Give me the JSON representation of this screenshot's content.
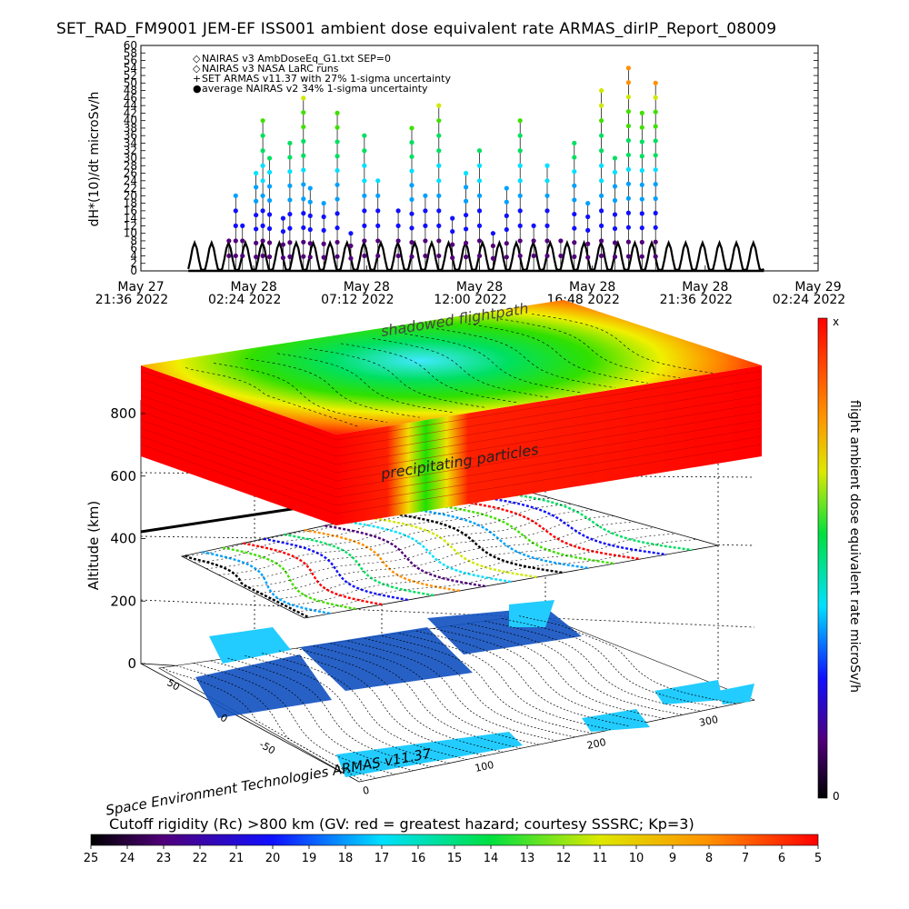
{
  "title": "SET_RAD_FM9001  JEM-EF ISS001 ambient dose equivalent rate ARMAS_dirIP_Report_08009",
  "footer_label": "Space Environment Technologies ARMAS v11.37",
  "cutoff_title": "Cutoff rigidity (Rc) >800 km (GV: red = greatest hazard; courtesy SSSRC; Kp=3)",
  "annotations": {
    "shadowed": "shadowed flightpath",
    "precipitating": "precipitating particles"
  },
  "colorbar": {
    "label": "flight ambient dose equivalent rate microSv/h",
    "top_label": "x",
    "bottom_label": "0"
  },
  "cutoff_bar": {
    "ticks": [
      "25",
      "24",
      "23",
      "22",
      "21",
      "20",
      "19",
      "18",
      "17",
      "16",
      "15",
      "14",
      "13",
      "12",
      "11",
      "10",
      "9",
      "8",
      "7",
      "6",
      "5"
    ]
  },
  "chart_data": [
    {
      "type": "line",
      "title": "",
      "ylabel": "dH*(10)/dt microSv/h",
      "xlabel": "",
      "ylim": [
        0,
        60
      ],
      "yticks": [
        0,
        2,
        4,
        6,
        8,
        10,
        12,
        14,
        16,
        18,
        20,
        22,
        24,
        26,
        28,
        30,
        32,
        34,
        36,
        38,
        40,
        42,
        44,
        46,
        48,
        50,
        52,
        54,
        56,
        58,
        60
      ],
      "xticks": [
        [
          "May 27",
          "21:36 2022"
        ],
        [
          "May 28",
          "02:24 2022"
        ],
        [
          "May 28",
          "07:12 2022"
        ],
        [
          "May 28",
          "12:00 2022"
        ],
        [
          "May 28",
          "16:48 2022"
        ],
        [
          "May 28",
          "21:36 2022"
        ],
        [
          "May 29",
          "02:24 2022"
        ]
      ],
      "legend": [
        {
          "symbol": "◇",
          "text": "NAIRAS v3 AmbDoseEq_G1.txt SEP=0"
        },
        {
          "symbol": "◇",
          "text": "NAIRAS v3 NASA LaRC runs"
        },
        {
          "symbol": "+",
          "text": "SET ARMAS v11.37 with 27% 1-sigma uncertainty"
        },
        {
          "symbol": "●",
          "text": "average NAIRAS v2 34% 1-sigma uncertainty"
        }
      ],
      "legend_position": "top-left",
      "baseline_cycle": [
        0.5,
        3.0,
        6.0,
        7.5,
        6.0,
        3.0,
        0.5,
        0.2
      ],
      "dose_points": [
        {
          "x": 0.13,
          "y": 8
        },
        {
          "x": 0.14,
          "y": 20
        },
        {
          "x": 0.15,
          "y": 12
        },
        {
          "x": 0.17,
          "y": 26
        },
        {
          "x": 0.18,
          "y": 40
        },
        {
          "x": 0.19,
          "y": 30
        },
        {
          "x": 0.21,
          "y": 14
        },
        {
          "x": 0.22,
          "y": 34
        },
        {
          "x": 0.24,
          "y": 46
        },
        {
          "x": 0.25,
          "y": 22
        },
        {
          "x": 0.27,
          "y": 18
        },
        {
          "x": 0.29,
          "y": 42
        },
        {
          "x": 0.31,
          "y": 10
        },
        {
          "x": 0.33,
          "y": 36
        },
        {
          "x": 0.35,
          "y": 24
        },
        {
          "x": 0.38,
          "y": 16
        },
        {
          "x": 0.4,
          "y": 38
        },
        {
          "x": 0.42,
          "y": 20
        },
        {
          "x": 0.44,
          "y": 44
        },
        {
          "x": 0.46,
          "y": 14
        },
        {
          "x": 0.48,
          "y": 26
        },
        {
          "x": 0.5,
          "y": 32
        },
        {
          "x": 0.52,
          "y": 10
        },
        {
          "x": 0.54,
          "y": 22
        },
        {
          "x": 0.56,
          "y": 40
        },
        {
          "x": 0.58,
          "y": 12
        },
        {
          "x": 0.6,
          "y": 28
        },
        {
          "x": 0.62,
          "y": 8
        },
        {
          "x": 0.64,
          "y": 34
        },
        {
          "x": 0.66,
          "y": 18
        },
        {
          "x": 0.68,
          "y": 48
        },
        {
          "x": 0.7,
          "y": 30
        },
        {
          "x": 0.72,
          "y": 54
        },
        {
          "x": 0.74,
          "y": 42
        },
        {
          "x": 0.76,
          "y": 50
        }
      ]
    },
    {
      "type": "scatter",
      "title": "",
      "ylabel": "Altitude (km)",
      "zticks": [
        0,
        200,
        400,
        600,
        800
      ],
      "xticks": [
        0,
        100,
        200,
        300
      ],
      "yticks": [
        -50,
        0,
        50
      ]
    }
  ],
  "colors": {
    "axis": "#000000",
    "background": "#ffffff",
    "hazard_red": "#ff0000",
    "ocean": "#22ccff",
    "land": "#1050c0"
  }
}
